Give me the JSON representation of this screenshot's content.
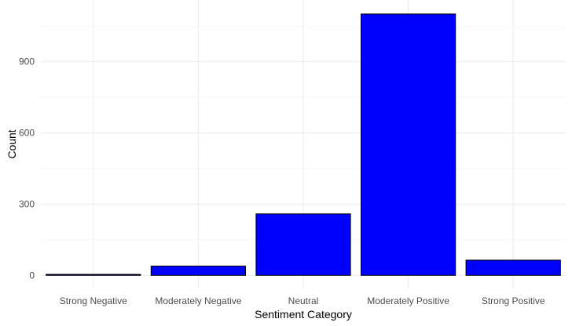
{
  "chart_data": {
    "type": "bar",
    "title": "",
    "xlabel": "Sentiment Category",
    "ylabel": "Count",
    "categories": [
      "Strong Negative",
      "Moderately Negative",
      "Neutral",
      "Moderately Positive",
      "Strong Positive"
    ],
    "values": [
      4,
      39,
      259,
      1101,
      64
    ],
    "ylim": [
      -55,
      1160
    ],
    "yticks": [
      0,
      300,
      600,
      900
    ],
    "yminor": [
      150,
      450,
      750,
      1050
    ],
    "grid": true,
    "legend": "none",
    "colors": {
      "bar_fill": "#0000FF",
      "bar_stroke": "#000000",
      "grid_major": "#EBEBEB",
      "grid_minor": "#F5F5F5",
      "background": "#FFFFFF",
      "tick_text": "#4D4D4D",
      "title_text": "#000000"
    }
  }
}
